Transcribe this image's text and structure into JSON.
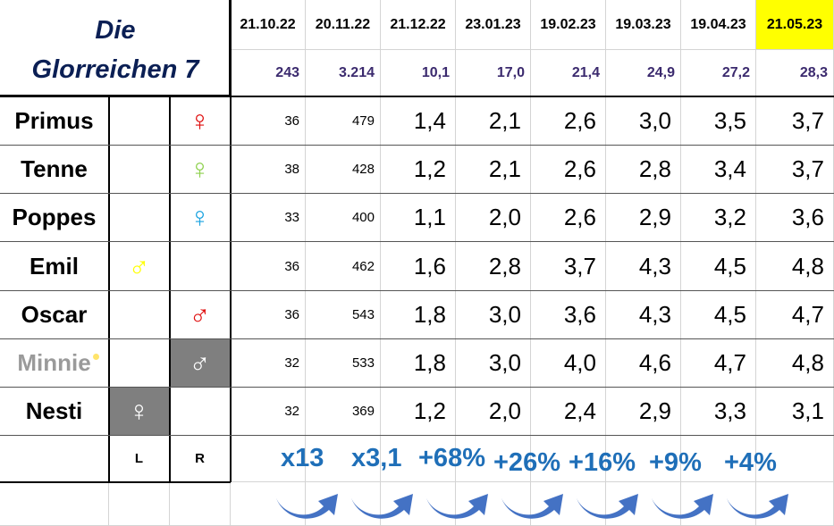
{
  "title": {
    "line1": "Die",
    "line2": "Glorreichen 7"
  },
  "dates": [
    "21.10.22",
    "20.11.22",
    "21.12.22",
    "23.01.23",
    "19.02.23",
    "19.03.23",
    "19.04.23",
    "21.05.23"
  ],
  "totals": [
    "243",
    "3.214",
    "10,1",
    "17,0",
    "21,4",
    "24,9",
    "27,2",
    "28,3"
  ],
  "rows": [
    {
      "name": "Primus",
      "L": "",
      "R": "♀",
      "values": [
        "36",
        "479",
        "1,4",
        "2,1",
        "2,6",
        "3,0",
        "3,5",
        "3,7"
      ]
    },
    {
      "name": "Tenne",
      "L": "",
      "R": "♀",
      "values": [
        "38",
        "428",
        "1,2",
        "2,1",
        "2,6",
        "2,8",
        "3,4",
        "3,7"
      ]
    },
    {
      "name": "Poppes",
      "L": "",
      "R": "♀",
      "values": [
        "33",
        "400",
        "1,1",
        "2,0",
        "2,6",
        "2,9",
        "3,2",
        "3,6"
      ]
    },
    {
      "name": "Emil",
      "L": "♂",
      "R": "",
      "values": [
        "36",
        "462",
        "1,6",
        "2,8",
        "3,7",
        "4,3",
        "4,5",
        "4,8"
      ]
    },
    {
      "name": "Oscar",
      "L": "",
      "R": "♂",
      "values": [
        "36",
        "543",
        "1,8",
        "3,0",
        "3,6",
        "4,3",
        "4,5",
        "4,7"
      ]
    },
    {
      "name": "Minnie",
      "L": "",
      "R": "♂",
      "values": [
        "32",
        "533",
        "1,8",
        "3,0",
        "4,0",
        "4,6",
        "4,7",
        "4,8"
      ]
    },
    {
      "name": "Nesti",
      "L": "♀",
      "R": "",
      "values": [
        "32",
        "369",
        "1,2",
        "2,0",
        "2,4",
        "2,9",
        "3,3",
        "3,1"
      ]
    }
  ],
  "footer": {
    "left": "L",
    "right": "R"
  },
  "growth": [
    "x13",
    "x3,1",
    "+68%",
    "+26%",
    "+16%",
    "+9%",
    "+4%"
  ],
  "colors": {
    "title": "#0b1f54",
    "highlight": "#ffff00",
    "growth": "#1f6fb8",
    "arrow": "#4472c4",
    "symbols": [
      "#e01010",
      "#8fd14f",
      "#1aa3e0",
      "#ffff00",
      "#e01010",
      "#ffffff",
      "#ffffff"
    ],
    "symbol_bg": [
      "",
      "",
      "",
      "",
      "",
      "#7f7f7f",
      "#7f7f7f"
    ]
  },
  "icons": {
    "female": "female-symbol-icon",
    "male": "male-symbol-icon",
    "curved_arrow": "curved-arrow-icon"
  }
}
